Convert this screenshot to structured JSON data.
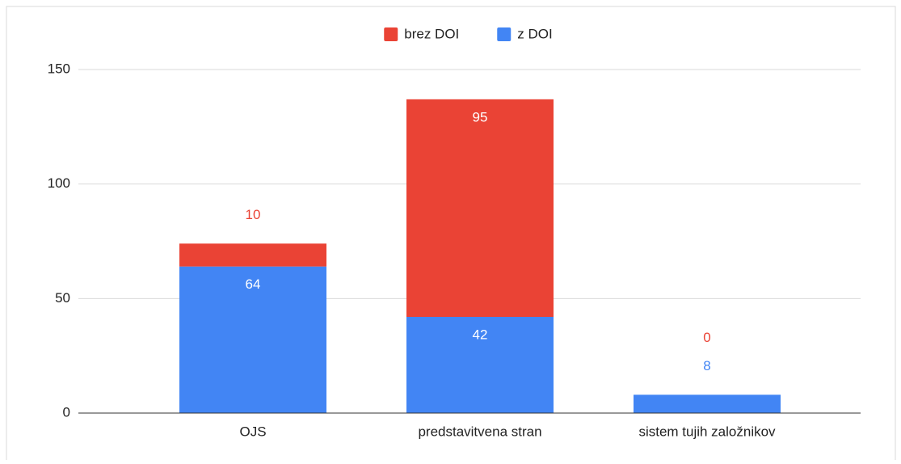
{
  "chart_data": {
    "type": "bar",
    "stacked": true,
    "categories": [
      "OJS",
      "predstavitvena stran",
      "sistem tujih založnikov"
    ],
    "series": [
      {
        "name": "brez DOI",
        "color": "#ea4335",
        "values": [
          10,
          95,
          0
        ]
      },
      {
        "name": "z DOI",
        "color": "#4285f4",
        "values": [
          64,
          42,
          8
        ]
      }
    ],
    "stack_order": [
      1,
      0
    ],
    "ylim": [
      0,
      150
    ],
    "yticks": [
      0,
      50,
      100,
      150
    ],
    "grid": true,
    "legend": "top"
  }
}
